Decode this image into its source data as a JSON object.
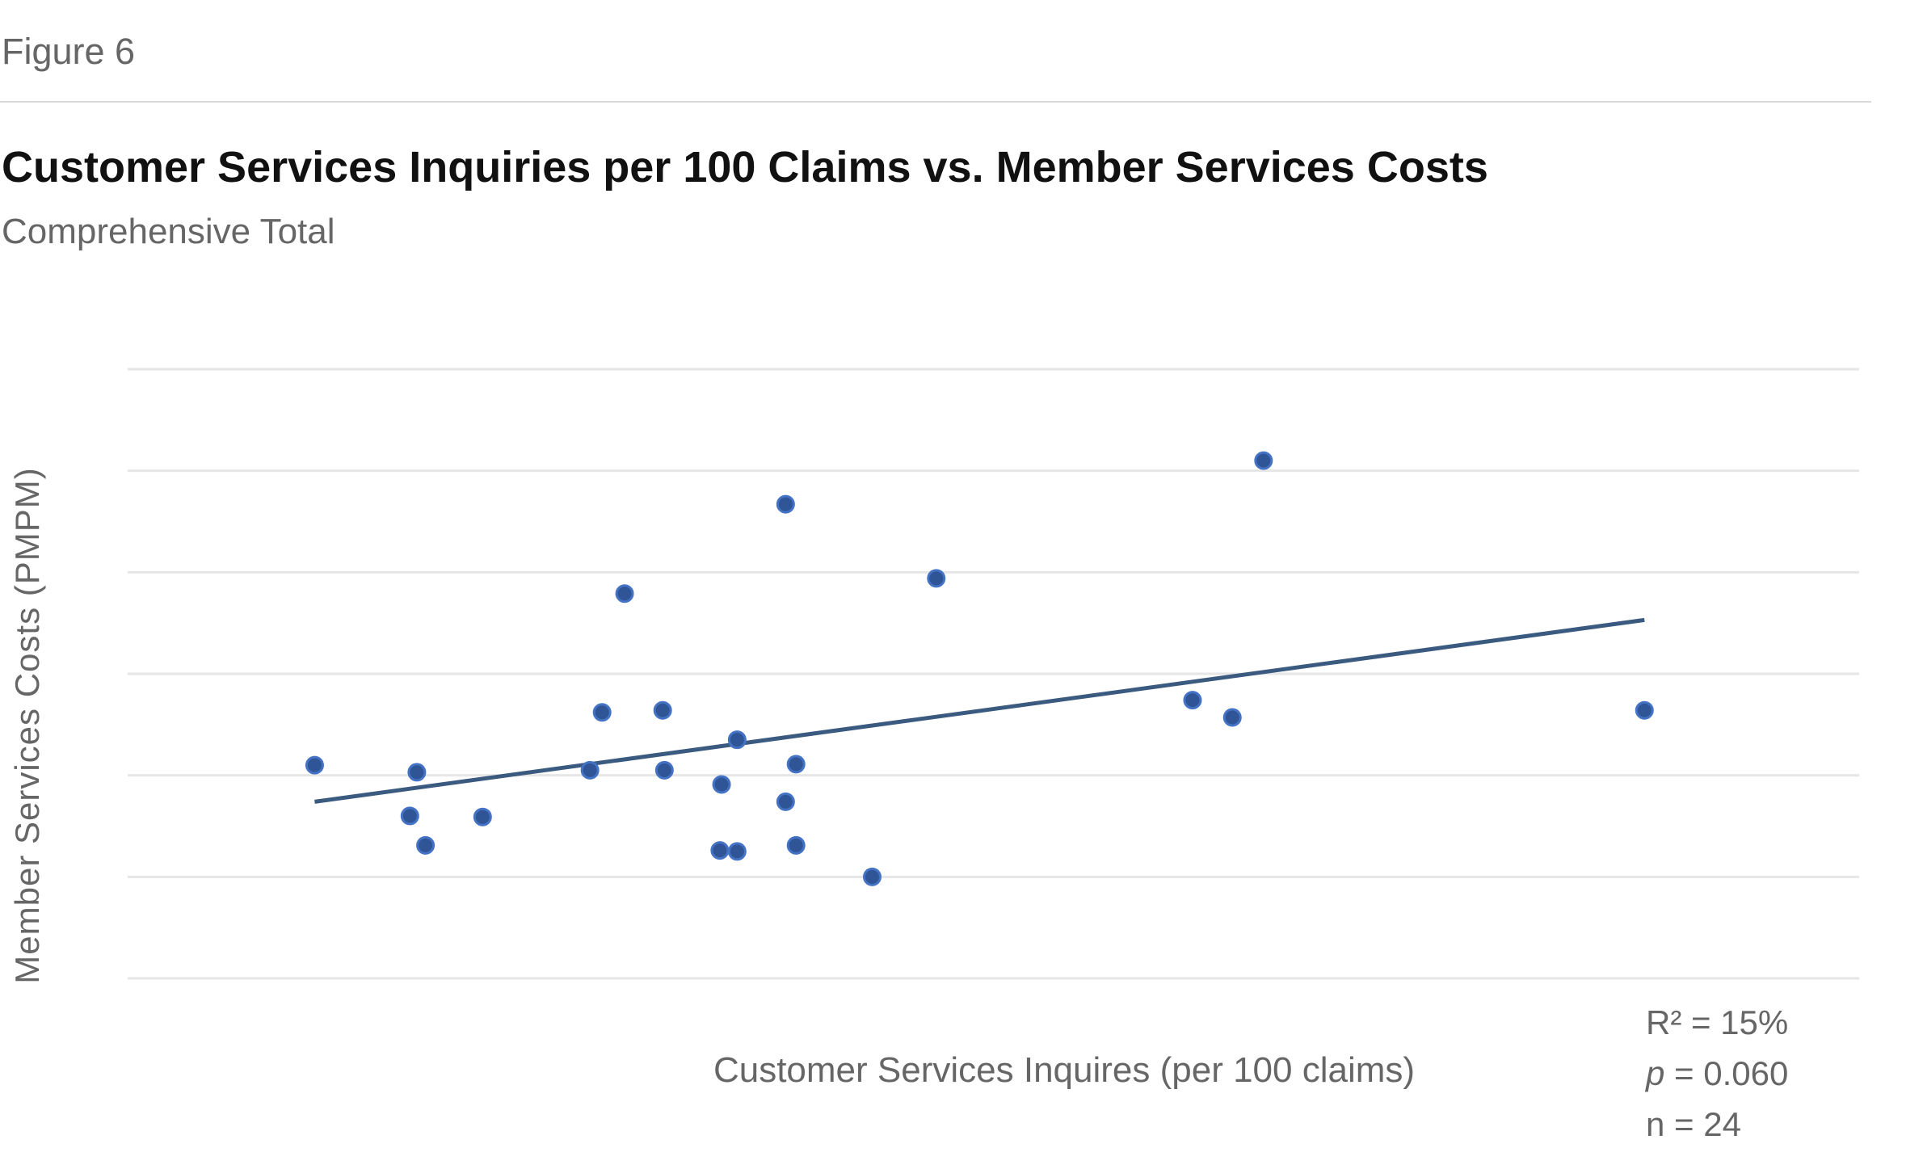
{
  "figure_label": "Figure 6",
  "chart_data": {
    "type": "scatter",
    "title": "Customer Services Inquiries per 100 Claims vs. Member Services Costs",
    "subtitle": "Comprehensive Total",
    "xlabel": "Customer Services Inquires (per 100 claims)",
    "ylabel": "Member Services Costs (PMPM)",
    "xlim": [
      0,
      100
    ],
    "ylim": [
      0,
      6
    ],
    "grid": true,
    "gridlines_y": [
      0,
      1,
      2,
      3,
      4,
      5,
      6
    ],
    "points": [
      {
        "x": 10.8,
        "y": 2.1
      },
      {
        "x": 16.7,
        "y": 2.03
      },
      {
        "x": 16.3,
        "y": 1.6
      },
      {
        "x": 17.2,
        "y": 1.31
      },
      {
        "x": 20.5,
        "y": 1.59
      },
      {
        "x": 26.7,
        "y": 2.05
      },
      {
        "x": 27.4,
        "y": 2.62
      },
      {
        "x": 28.7,
        "y": 3.79
      },
      {
        "x": 30.9,
        "y": 2.64
      },
      {
        "x": 31.0,
        "y": 2.05
      },
      {
        "x": 34.3,
        "y": 1.91
      },
      {
        "x": 34.2,
        "y": 1.26
      },
      {
        "x": 35.2,
        "y": 1.25
      },
      {
        "x": 35.2,
        "y": 2.35
      },
      {
        "x": 38.0,
        "y": 4.67
      },
      {
        "x": 38.0,
        "y": 1.74
      },
      {
        "x": 38.6,
        "y": 2.11
      },
      {
        "x": 38.6,
        "y": 1.31
      },
      {
        "x": 43.0,
        "y": 1.0
      },
      {
        "x": 46.7,
        "y": 3.94
      },
      {
        "x": 61.5,
        "y": 2.74
      },
      {
        "x": 63.8,
        "y": 2.57
      },
      {
        "x": 65.6,
        "y": 5.1
      },
      {
        "x": 87.6,
        "y": 2.64
      }
    ],
    "trendline": {
      "x": [
        10.8,
        87.6
      ],
      "y": [
        1.74,
        3.53
      ]
    },
    "colors": {
      "point": "#2f5597",
      "point_stroke": "#4472c4",
      "trend": "#3b5a80",
      "grid": "#e6e6e6"
    },
    "stats": {
      "r2": "R² = 15%",
      "p_symbol": "p",
      "p_value": " = 0.060",
      "n": "n = 24"
    }
  }
}
